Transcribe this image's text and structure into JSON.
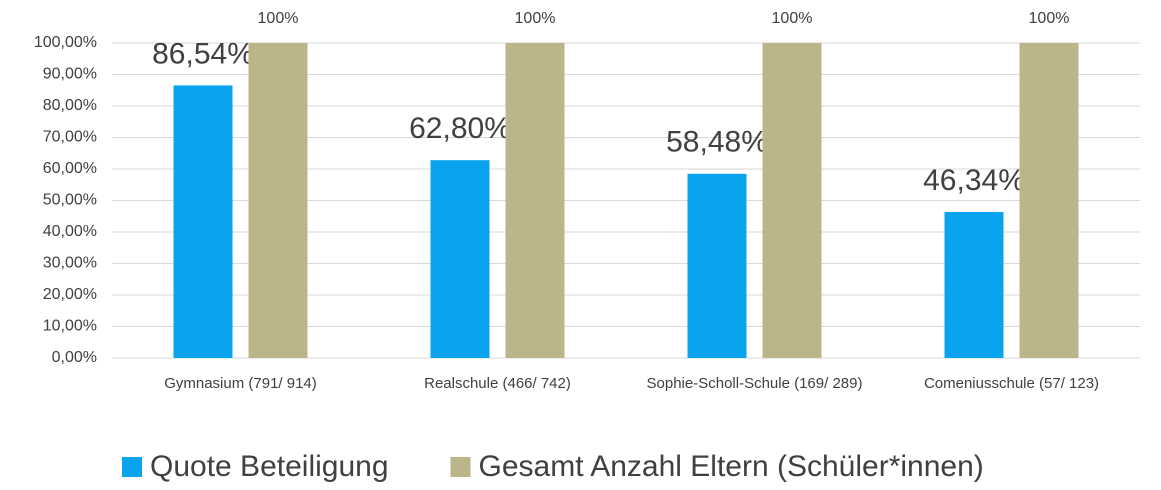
{
  "chart_data": {
    "type": "bar",
    "categories": [
      "Gymnasium (791/ 914)",
      "Realschule (466/ 742)",
      "Sophie-Scholl-Schule (169/ 289)",
      "Comeniusschule (57/ 123)"
    ],
    "series": [
      {
        "name": "Quote Beteiligung",
        "color": "#0aa4ee",
        "values": [
          86.54,
          62.8,
          58.48,
          46.34
        ],
        "value_labels": [
          "86,54%",
          "62,80%",
          "58,48%",
          "46,34%"
        ]
      },
      {
        "name": "Gesamt Anzahl Eltern (Schüler*innen)",
        "color": "#bdb58a",
        "values": [
          100,
          100,
          100,
          100
        ],
        "value_labels": [
          "100%",
          "100%",
          "100%",
          "100%"
        ]
      }
    ],
    "ylim": [
      0,
      100
    ],
    "yticks": [
      {
        "value": 0,
        "label": "0,00%"
      },
      {
        "value": 10,
        "label": "10,00%"
      },
      {
        "value": 20,
        "label": "20,00%"
      },
      {
        "value": 30,
        "label": "30,00%"
      },
      {
        "value": 40,
        "label": "40,00%"
      },
      {
        "value": 50,
        "label": "50,00%"
      },
      {
        "value": 60,
        "label": "60,00%"
      },
      {
        "value": 70,
        "label": "70,00%"
      },
      {
        "value": 80,
        "label": "80,00%"
      },
      {
        "value": 90,
        "label": "90,00%"
      },
      {
        "value": 100,
        "label": "100,00%"
      }
    ],
    "grid": true,
    "legend": "bottom"
  }
}
